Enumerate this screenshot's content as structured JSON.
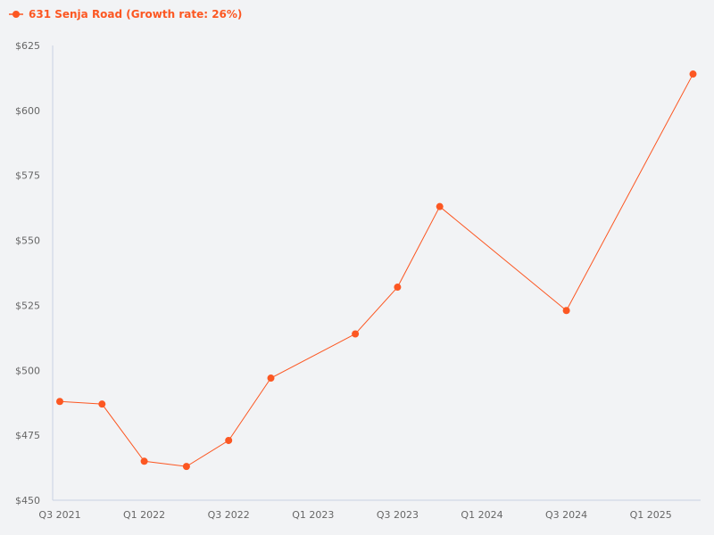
{
  "legend": {
    "label": "631 Senja Road (Growth rate: 26%)",
    "color": "#fc5722"
  },
  "chart_data": {
    "type": "line",
    "title": "",
    "xlabel": "",
    "ylabel": "",
    "ylim": [
      450,
      625
    ],
    "y_ticks": [
      "$450",
      "$475",
      "$500",
      "$525",
      "$550",
      "$575",
      "$600",
      "$625"
    ],
    "x_ticks": [
      "Q3 2021",
      "Q1 2022",
      "Q3 2022",
      "Q1 2023",
      "Q3 2023",
      "Q1 2024",
      "Q3 2024",
      "Q1 2025"
    ],
    "legend_position": "top-left",
    "grid": false,
    "series": [
      {
        "name": "631 Senja Road (Growth rate: 26%)",
        "color": "#fc5722",
        "points": [
          {
            "x": "Q3 2021",
            "y": 488
          },
          {
            "x": "Q4 2021",
            "y": 487
          },
          {
            "x": "Q1 2022",
            "y": 465
          },
          {
            "x": "Q2 2022",
            "y": 463
          },
          {
            "x": "Q3 2022",
            "y": 473
          },
          {
            "x": "Q4 2022",
            "y": 497
          },
          {
            "x": "Q2 2023",
            "y": 514
          },
          {
            "x": "Q3 2023",
            "y": 532
          },
          {
            "x": "Q4 2023",
            "y": 563
          },
          {
            "x": "Q3 2024",
            "y": 523
          },
          {
            "x": "Q2 2025",
            "y": 614
          }
        ]
      }
    ]
  }
}
